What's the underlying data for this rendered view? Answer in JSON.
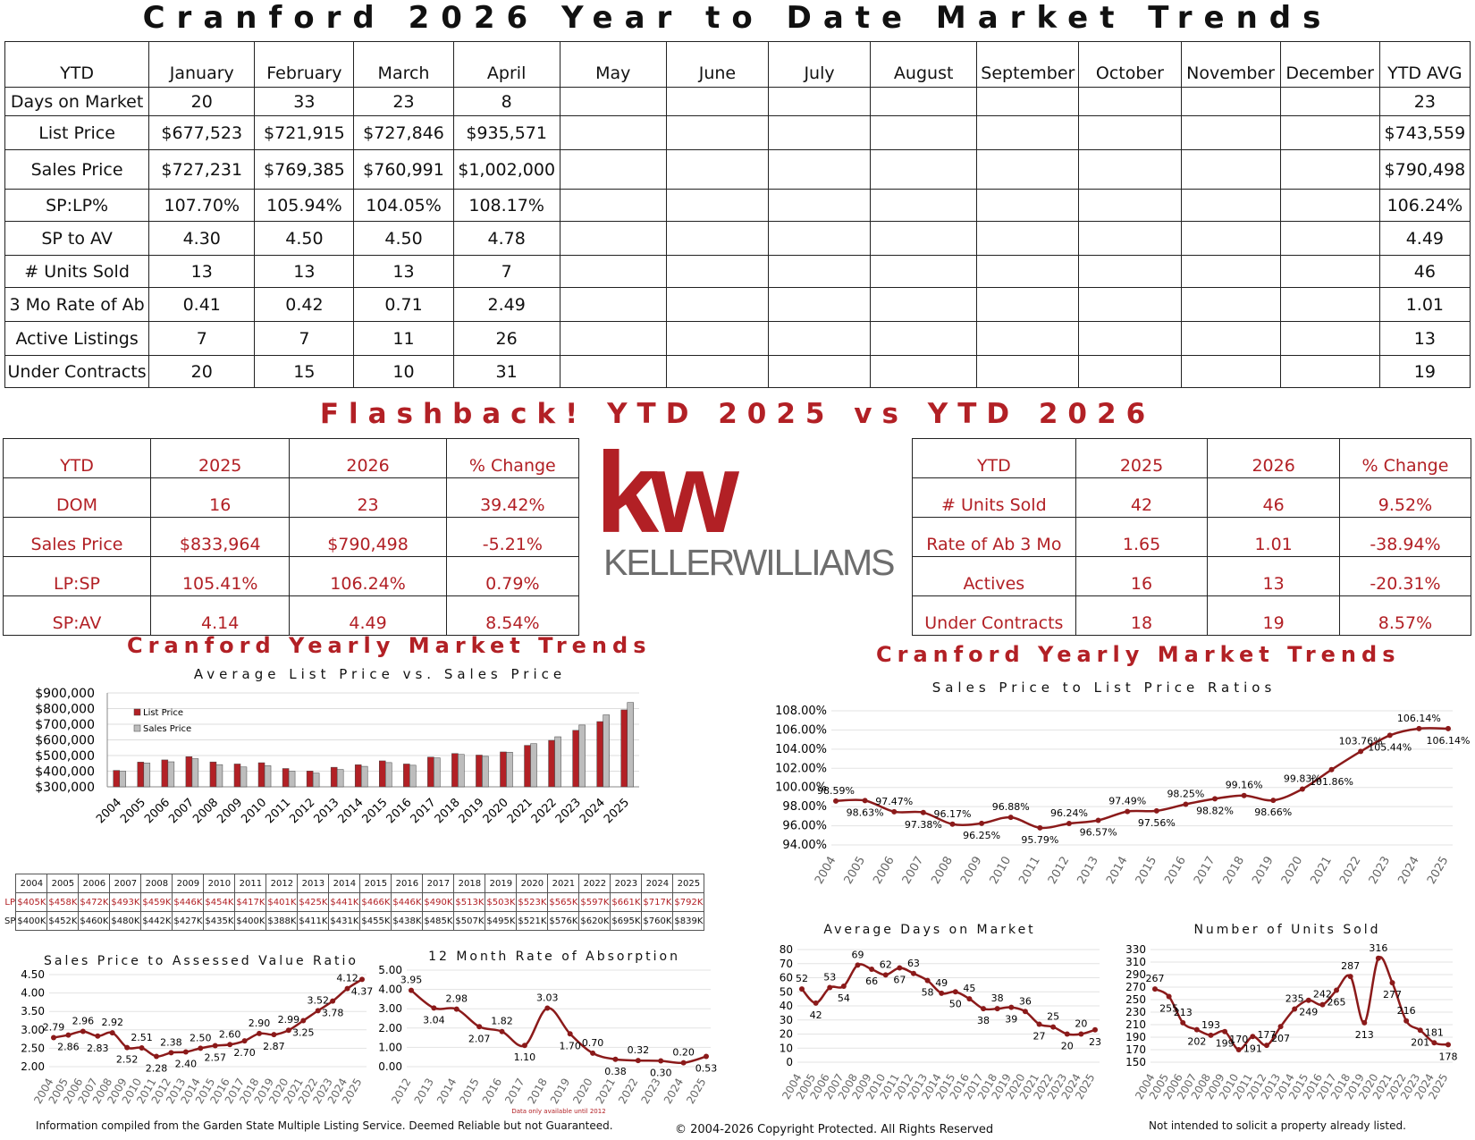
{
  "page_title": "Cranford 2026 Year to Date Market Trends",
  "ytd_table": {
    "headers": [
      "YTD",
      "January",
      "February",
      "March",
      "April",
      "May",
      "June",
      "July",
      "August",
      "September",
      "October",
      "November",
      "December",
      "YTD AVG"
    ],
    "rows": [
      [
        "Days on Market",
        "20",
        "33",
        "23",
        "8",
        "",
        "",
        "",
        "",
        "",
        "",
        "",
        "",
        "23"
      ],
      [
        "List Price",
        "$677,523",
        "$721,915",
        "$727,846",
        "$935,571",
        "",
        "",
        "",
        "",
        "",
        "",
        "",
        "",
        "$743,559"
      ],
      [
        "Sales Price",
        "$727,231",
        "$769,385",
        "$760,991",
        "$1,002,000",
        "",
        "",
        "",
        "",
        "",
        "",
        "",
        "",
        "$790,498"
      ],
      [
        "SP:LP%",
        "107.70%",
        "105.94%",
        "104.05%",
        "108.17%",
        "",
        "",
        "",
        "",
        "",
        "",
        "",
        "",
        "106.24%"
      ],
      [
        "SP to AV",
        "4.30",
        "4.50",
        "4.50",
        "4.78",
        "",
        "",
        "",
        "",
        "",
        "",
        "",
        "",
        "4.49"
      ],
      [
        "# Units Sold",
        "13",
        "13",
        "13",
        "7",
        "",
        "",
        "",
        "",
        "",
        "",
        "",
        "",
        "46"
      ],
      [
        "3 Mo Rate of Ab",
        "0.41",
        "0.42",
        "0.71",
        "2.49",
        "",
        "",
        "",
        "",
        "",
        "",
        "",
        "",
        "1.01"
      ],
      [
        "Active Listings",
        "7",
        "7",
        "11",
        "26",
        "",
        "",
        "",
        "",
        "",
        "",
        "",
        "",
        "13"
      ],
      [
        "Under Contracts",
        "20",
        "15",
        "10",
        "31",
        "",
        "",
        "",
        "",
        "",
        "",
        "",
        "",
        "19"
      ]
    ]
  },
  "flashback_title": "Flashback!  YTD 2025 vs YTD 2026",
  "compare_left": {
    "headers": [
      "YTD",
      "2025",
      "2026",
      "% Change"
    ],
    "rows": [
      [
        "DOM",
        "16",
        "23",
        "39.42%"
      ],
      [
        "Sales Price",
        "$833,964",
        "$790,498",
        "-5.21%"
      ],
      [
        "LP:SP",
        "105.41%",
        "106.24%",
        "0.79%"
      ],
      [
        "SP:AV",
        "4.14",
        "4.49",
        "8.54%"
      ]
    ]
  },
  "compare_right": {
    "headers": [
      "YTD",
      "2025",
      "2026",
      "% Change"
    ],
    "rows": [
      [
        "# Units Sold",
        "42",
        "46",
        "9.52%"
      ],
      [
        "Rate of Ab 3 Mo",
        "1.65",
        "1.01",
        "-38.94%"
      ],
      [
        "Actives",
        "16",
        "13",
        "-20.31%"
      ],
      [
        "Under Contracts",
        "18",
        "19",
        "8.57%"
      ]
    ]
  },
  "logo": {
    "kw": "kw",
    "brand": "KELLERWILLIAMS"
  },
  "left_section_title": "Cranford Yearly Market Trends",
  "right_section_title": "Cranford Yearly Market Trends",
  "price_grid": {
    "years": [
      "2004",
      "2005",
      "2006",
      "2007",
      "2008",
      "2009",
      "2010",
      "2011",
      "2012",
      "2013",
      "2014",
      "2015",
      "2016",
      "2017",
      "2018",
      "2019",
      "2020",
      "2021",
      "2022",
      "2023",
      "2024",
      "2025"
    ],
    "lp_label": "LP",
    "sp_label": "SP",
    "lp": [
      "$405K",
      "$458K",
      "$472K",
      "$493K",
      "$459K",
      "$446K",
      "$454K",
      "$417K",
      "$401K",
      "$425K",
      "$441K",
      "$466K",
      "$446K",
      "$490K",
      "$513K",
      "$503K",
      "$523K",
      "$565K",
      "$597K",
      "$661K",
      "$717K",
      "$792K"
    ],
    "sp": [
      "$400K",
      "$452K",
      "$460K",
      "$480K",
      "$442K",
      "$427K",
      "$435K",
      "$400K",
      "$388K",
      "$411K",
      "$431K",
      "$455K",
      "$438K",
      "$485K",
      "$507K",
      "$495K",
      "$521K",
      "$576K",
      "$620K",
      "$695K",
      "$760K",
      "$839K"
    ]
  },
  "chart_data": [
    {
      "type": "bar",
      "title": "Average List Price vs. Sales Price",
      "categories": [
        "2004",
        "2005",
        "2006",
        "2007",
        "2008",
        "2009",
        "2010",
        "2011",
        "2012",
        "2013",
        "2014",
        "2015",
        "2016",
        "2017",
        "2018",
        "2019",
        "2020",
        "2021",
        "2022",
        "2023",
        "2024",
        "2025"
      ],
      "series": [
        {
          "name": "List Price",
          "color": "#b22025",
          "values": [
            405,
            458,
            472,
            493,
            459,
            446,
            454,
            417,
            401,
            425,
            441,
            466,
            446,
            490,
            513,
            503,
            523,
            565,
            597,
            661,
            717,
            792
          ]
        },
        {
          "name": "Sales Price",
          "color": "#bdbdbd",
          "values": [
            400,
            452,
            460,
            480,
            442,
            427,
            435,
            400,
            388,
            411,
            431,
            455,
            438,
            485,
            507,
            495,
            521,
            576,
            620,
            695,
            760,
            839
          ]
        }
      ],
      "ylim": [
        300000,
        900000
      ],
      "yticks": [
        "$300,000",
        "$400,000",
        "$500,000",
        "$600,000",
        "$700,000",
        "$800,000",
        "$900,000"
      ],
      "legend": "top-left"
    },
    {
      "type": "line",
      "title": "Sales Price to List Price Ratios",
      "x": [
        "2004",
        "2005",
        "2006",
        "2007",
        "2008",
        "2009",
        "2010",
        "2011",
        "2012",
        "2013",
        "2014",
        "2015",
        "2016",
        "2017",
        "2018",
        "2019",
        "2020",
        "2021",
        "2022",
        "2023",
        "2024",
        "2025"
      ],
      "values": [
        98.59,
        98.63,
        97.47,
        97.38,
        96.17,
        96.25,
        96.88,
        95.79,
        96.24,
        96.57,
        97.49,
        97.56,
        98.25,
        98.82,
        99.16,
        98.66,
        99.83,
        101.86,
        103.76,
        105.44,
        106.14,
        106.14
      ],
      "labels": [
        "98.59%",
        "98.63%",
        "97.47%",
        "97.38%",
        "96.17%",
        "96.25%",
        "96.88%",
        "95.79%",
        "96.24%",
        "96.57%",
        "97.49%",
        "97.56%",
        "98.25%",
        "98.82%",
        "99.16%",
        "98.66%",
        "99.83%",
        "101.86%",
        "103.76%",
        "105.44%",
        "106.14%",
        "106.14%"
      ],
      "ylim": [
        94,
        108
      ],
      "yticks": [
        "94.00%",
        "96.00%",
        "98.00%",
        "100.00%",
        "102.00%",
        "104.00%",
        "106.00%",
        "108.00%"
      ]
    },
    {
      "type": "line",
      "title": "Sales Price to Assessed Value Ratio",
      "x": [
        "2004",
        "2005",
        "2006",
        "2007",
        "2008",
        "2009",
        "2010",
        "2011",
        "2012",
        "2013",
        "2014",
        "2015",
        "2016",
        "2017",
        "2018",
        "2019",
        "2020",
        "2021",
        "2022",
        "2023",
        "2024",
        "2025"
      ],
      "values": [
        2.79,
        2.86,
        2.96,
        2.83,
        2.92,
        2.52,
        2.51,
        2.28,
        2.38,
        2.4,
        2.5,
        2.57,
        2.6,
        2.7,
        2.9,
        2.87,
        2.99,
        3.25,
        3.52,
        3.78,
        4.12,
        4.37
      ],
      "labels": [
        "2.79",
        "2.86",
        "2.96",
        "2.83",
        "2.92",
        "2.52",
        "2.51",
        "2.28",
        "2.38",
        "2.40",
        "2.50",
        "2.57",
        "2.60",
        "2.70",
        "2.90",
        "2.87",
        "2.99",
        "3.25",
        "3.52",
        "3.78",
        "4.12",
        "4.37"
      ],
      "ylim": [
        2,
        4.5
      ],
      "yticks": [
        "2.00",
        "2.50",
        "3.00",
        "3.50",
        "4.00",
        "4.50"
      ]
    },
    {
      "type": "line",
      "title": "12 Month Rate of Absorption",
      "x": [
        "2012",
        "2013",
        "2014",
        "2015",
        "2016",
        "2017",
        "2018",
        "2019",
        "2020",
        "2021",
        "2022",
        "2023",
        "2024",
        "2025"
      ],
      "values": [
        3.95,
        3.04,
        2.98,
        2.07,
        1.82,
        1.1,
        3.03,
        1.7,
        0.7,
        0.38,
        0.32,
        0.3,
        0.2,
        0.53
      ],
      "labels": [
        "3.95",
        "3.04",
        "2.98",
        "2.07",
        "1.82",
        "1.10",
        "3.03",
        "1.70",
        "0.70",
        "0.38",
        "0.32",
        "0.30",
        "0.20",
        "0.53"
      ],
      "ylim": [
        0,
        5
      ],
      "yticks": [
        "0.00",
        "1.00",
        "2.00",
        "3.00",
        "4.00",
        "5.00"
      ],
      "note": "Data only available until 2012"
    },
    {
      "type": "line",
      "title": "Average Days on Market",
      "x": [
        "2004",
        "2005",
        "2006",
        "2007",
        "2008",
        "2009",
        "2010",
        "2011",
        "2012",
        "2013",
        "2014",
        "2015",
        "2016",
        "2017",
        "2018",
        "2019",
        "2020",
        "2021",
        "2022",
        "2023",
        "2024",
        "2025"
      ],
      "values": [
        52,
        42,
        53,
        54,
        69,
        66,
        62,
        67,
        63,
        58,
        49,
        50,
        45,
        38,
        38,
        39,
        36,
        27,
        25,
        20,
        20,
        23
      ],
      "labels": [
        "52",
        "42",
        "53",
        "54",
        "69",
        "66",
        "62",
        "67",
        "63",
        "58",
        "49",
        "50",
        "45",
        "38",
        "38",
        "39",
        "36",
        "27",
        "25",
        "20",
        "20",
        "23"
      ],
      "ylim": [
        0,
        80
      ],
      "yticks": [
        "0",
        "10",
        "20",
        "30",
        "40",
        "50",
        "60",
        "70",
        "80"
      ]
    },
    {
      "type": "line",
      "title": "Number of Units Sold",
      "x": [
        "2004",
        "2005",
        "2006",
        "2007",
        "2008",
        "2009",
        "2010",
        "2011",
        "2012",
        "2013",
        "2014",
        "2015",
        "2016",
        "2017",
        "2018",
        "2019",
        "2020",
        "2021",
        "2022",
        "2023",
        "2024",
        "2025"
      ],
      "values": [
        267,
        255,
        213,
        202,
        193,
        199,
        170,
        191,
        177,
        207,
        235,
        249,
        242,
        265,
        287,
        213,
        316,
        277,
        216,
        201,
        181,
        178
      ],
      "labels": [
        "267",
        "255",
        "213",
        "202",
        "193",
        "199",
        "170",
        "191",
        "177",
        "207",
        "235",
        "249",
        "242",
        "265",
        "287",
        "213",
        "316",
        "277",
        "216",
        "201",
        "181",
        "178"
      ],
      "ylim": [
        150,
        330
      ],
      "yticks": [
        "150",
        "170",
        "190",
        "210",
        "230",
        "250",
        "270",
        "290",
        "310",
        "330"
      ]
    }
  ],
  "footer": {
    "left": "Information compiled from the Garden State Multiple Listing Service.  Deemed Reliable but not Guaranteed.",
    "center": "© 2004-2026 Copyright Protected.  All Rights Reserved",
    "right": "Not intended to solicit a property already listed."
  }
}
